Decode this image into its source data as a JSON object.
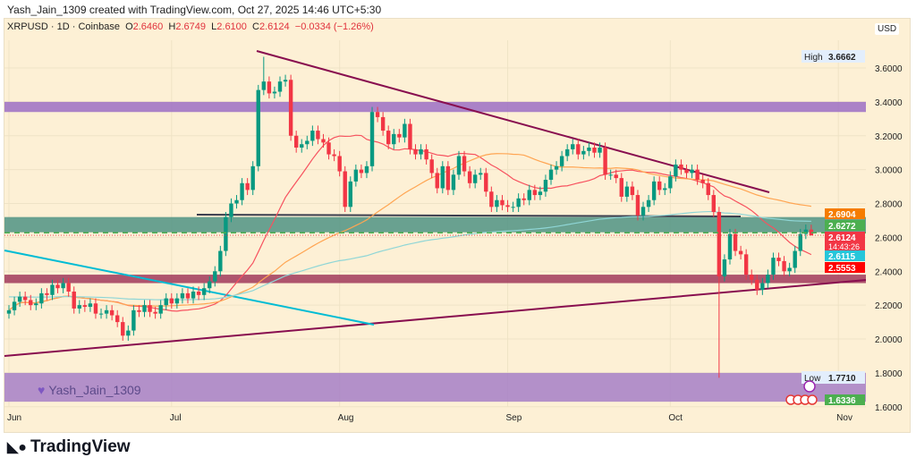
{
  "credit": "Yash_Jain_1309 created with TradingView.com, Oct 27, 2025 14:46 UTC+5:30",
  "legend": {
    "symbol": "XRPUSD · 1D · Coinbase",
    "o_label": "O",
    "o": "2.6460",
    "h_label": "H",
    "h": "2.6749",
    "l_label": "L",
    "l": "2.6100",
    "c_label": "C",
    "c": "2.6124",
    "change": "−0.0334 (−1.26%)"
  },
  "currency": "USD",
  "watermark": "Yash_Jain_1309",
  "brand": "TradingView",
  "colors": {
    "up": "#089981",
    "down": "#f23645",
    "background": "#fdf0d5",
    "sma_fast": "#f7525f",
    "sma_mid": "#ffa552",
    "sma_slow": "#8fd6d6",
    "trendline": "#880e4f",
    "cyan_line": "#00bcd4"
  },
  "chart_data": {
    "type": "candlestick",
    "symbol": "XRPUSD",
    "interval": "1D",
    "x_start": "2025-06-01",
    "x_end": "2025-10-27",
    "x_tick_labels": [
      "Jun",
      "Jul",
      "Aug",
      "Sep",
      "Oct",
      "Nov"
    ],
    "ylim": [
      1.6,
      3.7
    ],
    "y_ticks": [
      "3.6000",
      "3.4000",
      "3.2000",
      "3.0000",
      "2.8000",
      "2.6000",
      "2.4000",
      "2.2000",
      "2.0000",
      "1.8000",
      "1.6000"
    ],
    "closes": [
      2.17,
      2.22,
      2.25,
      2.23,
      2.2,
      2.21,
      2.27,
      2.26,
      2.32,
      2.3,
      2.33,
      2.28,
      2.18,
      2.2,
      2.19,
      2.21,
      2.15,
      2.15,
      2.17,
      2.14,
      2.1,
      2.02,
      2.05,
      2.17,
      2.16,
      2.2,
      2.16,
      2.15,
      2.2,
      2.24,
      2.21,
      2.24,
      2.27,
      2.24,
      2.28,
      2.26,
      2.3,
      2.34,
      2.4,
      2.52,
      2.72,
      2.8,
      2.82,
      2.92,
      2.88,
      3.02,
      3.47,
      3.52,
      3.45,
      3.46,
      3.52,
      3.53,
      3.2,
      3.13,
      3.15,
      3.17,
      3.23,
      3.18,
      3.16,
      3.09,
      3.08,
      2.99,
      2.78,
      2.93,
      3.0,
      2.98,
      3.02,
      3.34,
      3.31,
      3.23,
      3.15,
      3.21,
      3.19,
      3.27,
      3.12,
      3.09,
      3.12,
      3.06,
      2.98,
      2.89,
      3.02,
      2.88,
      2.97,
      3.08,
      2.99,
      2.92,
      2.97,
      2.98,
      2.87,
      2.78,
      2.82,
      2.79,
      2.78,
      2.78,
      2.83,
      2.82,
      2.88,
      2.85,
      2.87,
      2.94,
      3.0,
      3.02,
      3.08,
      3.12,
      3.15,
      3.09,
      3.11,
      3.13,
      3.1,
      3.13,
      2.97,
      2.97,
      2.95,
      2.84,
      2.9,
      2.85,
      2.73,
      2.78,
      2.82,
      2.93,
      2.88,
      2.89,
      2.96,
      3.03,
      3.0,
      2.98,
      3.0,
      2.94,
      2.92,
      2.85,
      2.75,
      2.37,
      2.47,
      2.62,
      2.52,
      2.5,
      2.38,
      2.35,
      2.29,
      2.33,
      2.38,
      2.48,
      2.46,
      2.4,
      2.42,
      2.52,
      2.62,
      2.646,
      2.6124
    ],
    "last_candle": {
      "open": 2.646,
      "high": 2.6749,
      "low": 2.61,
      "close": 2.6124
    },
    "high_marker": {
      "label": "High",
      "value": "3.6662"
    },
    "low_marker": {
      "label": "Low",
      "value": "1.7710"
    },
    "zones": [
      {
        "from": 3.34,
        "to": 3.4,
        "color": "#9c6fc4"
      },
      {
        "from": 2.63,
        "to": 2.72,
        "color": "#4f9384"
      },
      {
        "from": 2.33,
        "to": 2.38,
        "color": "#a0385a"
      },
      {
        "from": 1.63,
        "to": 1.8,
        "color": "#a67fc7"
      }
    ],
    "price_labels": [
      {
        "value": "2.6904",
        "color": "#f57c00"
      },
      {
        "value": "2.6272",
        "color": "#4caf50"
      },
      {
        "value": "2.6124",
        "sub": "14:43:26",
        "color": "#f23645"
      },
      {
        "value": "2.6115",
        "color": "#26c6da"
      },
      {
        "value": "2.5553",
        "color": "#ff0000"
      },
      {
        "value": "1.6336",
        "color": "#4caf50"
      }
    ]
  }
}
